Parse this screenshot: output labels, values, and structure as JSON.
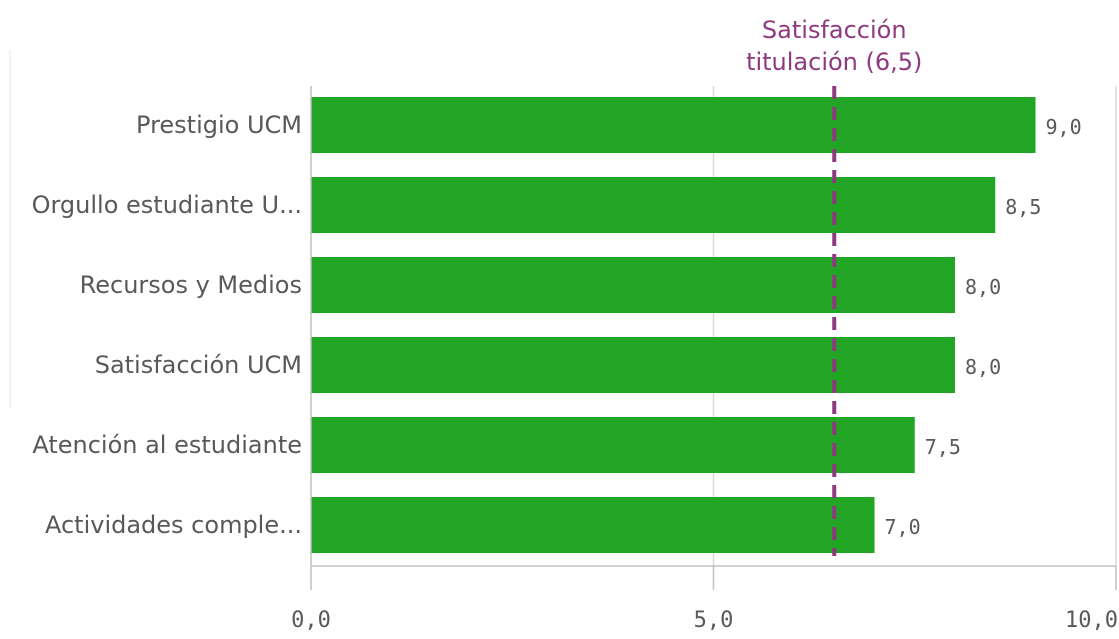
{
  "chart_data": {
    "type": "bar",
    "orientation": "horizontal",
    "categories": [
      "Prestigio UCM",
      "Orgullo estudiante U...",
      "Recursos y Medios",
      "Satisfacción UCM",
      "Atención al estudiante",
      "Actividades comple..."
    ],
    "values": [
      9.0,
      8.5,
      8.0,
      8.0,
      7.5,
      7.0
    ],
    "value_labels": [
      "9,0",
      "8,5",
      "8,0",
      "8,0",
      "7,5",
      "7,0"
    ],
    "xlim": [
      0,
      10
    ],
    "x_ticks": [
      0,
      5,
      10
    ],
    "x_tick_labels": [
      "0,0",
      "5,0",
      "10,0"
    ],
    "grid": true,
    "bar_color": "#22a524",
    "reference_line": {
      "value": 6.5,
      "label_lines": [
        "Satisfacción",
        "titulación (6,5)"
      ],
      "color": "#8e3a80",
      "style": "dashed"
    }
  }
}
